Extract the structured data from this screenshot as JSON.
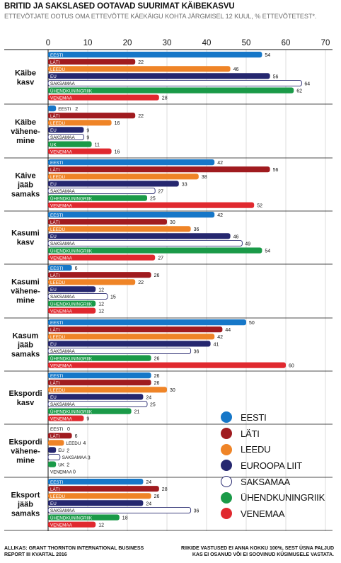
{
  "header": {
    "title": "BRITID JA SAKSLASED OOTAVAD SUURIMAT KÄIBEKASVU",
    "subtitle": "ETTEVÕTJATE OOTUS OMA ETTEVÕTTE KÄEKÄIGU KOHTA JÄRGMISEL 12 KUUL, % ETTEVÕTETEST*."
  },
  "footer": {
    "source": "ALLIKAS: GRANT THORNTON INTERNATIONAL BUSINESS REPORT III KVARTAL 2016",
    "note": "RIIKIDE VASTUSED EI ANNA KOKKU 100%, SEST ÜSNA PALJUD KAS EI OSANUD VÕI EI SOOVINUD KÜSIMUSELE VASTATA."
  },
  "colors": {
    "Eesti": "#1677c8",
    "Läti": "#a01b1f",
    "Leedu": "#ef8427",
    "EU": "#25276f",
    "Saksamaa": "#ffffff",
    "Ühendkuningriik": "#1a9a48",
    "Venemaa": "#e0292f"
  },
  "legend": [
    {
      "key": "Eesti",
      "label": "EESTI"
    },
    {
      "key": "Läti",
      "label": "LÄTI"
    },
    {
      "key": "Leedu",
      "label": "LEEDU"
    },
    {
      "key": "EU",
      "label": "EUROOPA LIIT"
    },
    {
      "key": "Saksamaa",
      "label": "SAKSAMAA"
    },
    {
      "key": "Ühendkuningriik",
      "label": "ÜHENDKUNINGRIIK"
    },
    {
      "key": "Venemaa",
      "label": "VENEMAA"
    }
  ],
  "chart_data": {
    "type": "bar",
    "orientation": "horizontal",
    "xlim": [
      0,
      70
    ],
    "xticks": [
      0,
      10,
      20,
      30,
      40,
      50,
      60,
      70
    ],
    "groups": [
      {
        "label": "Käibe kasv",
        "bars": [
          {
            "series": "Eesti",
            "bar_label": "EESTI",
            "value": 54
          },
          {
            "series": "Läti",
            "bar_label": "LÄTI",
            "value": 22
          },
          {
            "series": "Leedu",
            "bar_label": "LEEDU",
            "value": 46
          },
          {
            "series": "EU",
            "bar_label": "EU",
            "value": 56
          },
          {
            "series": "Saksamaa",
            "bar_label": "SAKSAMAA",
            "value": 64
          },
          {
            "series": "Ühendkuningriik",
            "bar_label": "ÜHENDKUNINGRIIK",
            "value": 62
          },
          {
            "series": "Venemaa",
            "bar_label": "VENEMAA",
            "value": 28
          }
        ]
      },
      {
        "label": "Käibe vähene-mine",
        "bars": [
          {
            "series": "Eesti",
            "bar_label": "EESTI",
            "value": 2
          },
          {
            "series": "Läti",
            "bar_label": "LÄTI",
            "value": 22
          },
          {
            "series": "Leedu",
            "bar_label": "LEEDU",
            "value": 16
          },
          {
            "series": "EU",
            "bar_label": "EU",
            "value": 9
          },
          {
            "series": "Saksamaa",
            "bar_label": "SAKSAMAA",
            "value": 9
          },
          {
            "series": "Ühendkuningriik",
            "bar_label": "UK",
            "value": 11
          },
          {
            "series": "Venemaa",
            "bar_label": "VENEMAA",
            "value": 16
          }
        ]
      },
      {
        "label": "Käive jääb samaks",
        "bars": [
          {
            "series": "Eesti",
            "bar_label": "EESTI",
            "value": 42
          },
          {
            "series": "Läti",
            "bar_label": "LÄTI",
            "value": 56
          },
          {
            "series": "Leedu",
            "bar_label": "LEEDU",
            "value": 38
          },
          {
            "series": "EU",
            "bar_label": "EU",
            "value": 33
          },
          {
            "series": "Saksamaa",
            "bar_label": "SAKSAMAA",
            "value": 27
          },
          {
            "series": "Ühendkuningriik",
            "bar_label": "ÜHENDKUNINGRIIK",
            "value": 25
          },
          {
            "series": "Venemaa",
            "bar_label": "VENEMAA",
            "value": 52
          }
        ]
      },
      {
        "label": "Kasumi kasv",
        "bars": [
          {
            "series": "Eesti",
            "bar_label": "EESTI",
            "value": 42
          },
          {
            "series": "Läti",
            "bar_label": "LÄTI",
            "value": 30
          },
          {
            "series": "Leedu",
            "bar_label": "LEEDU",
            "value": 36
          },
          {
            "series": "EU",
            "bar_label": "EU",
            "value": 46
          },
          {
            "series": "Saksamaa",
            "bar_label": "SAKSAMAA",
            "value": 49
          },
          {
            "series": "Ühendkuningriik",
            "bar_label": "ÜHENDKUNINGRIIK",
            "value": 54
          },
          {
            "series": "Venemaa",
            "bar_label": "VENEMAA",
            "value": 27
          }
        ]
      },
      {
        "label": "Kasumi vähene-mine",
        "bars": [
          {
            "series": "Eesti",
            "bar_label": "EESTI",
            "value": 6
          },
          {
            "series": "Läti",
            "bar_label": "LÄTI",
            "value": 26
          },
          {
            "series": "Leedu",
            "bar_label": "LEEDU",
            "value": 22
          },
          {
            "series": "EU",
            "bar_label": "EU",
            "value": 12
          },
          {
            "series": "Saksamaa",
            "bar_label": "SAKSAMAA",
            "value": 15
          },
          {
            "series": "Ühendkuningriik",
            "bar_label": "ÜHENDKUNINGRIIK",
            "value": 12
          },
          {
            "series": "Venemaa",
            "bar_label": "VENEMAA",
            "value": 12
          }
        ]
      },
      {
        "label": "Kasum jääb samaks",
        "bars": [
          {
            "series": "Eesti",
            "bar_label": "EESTI",
            "value": 50
          },
          {
            "series": "Läti",
            "bar_label": "LÄTI",
            "value": 44
          },
          {
            "series": "Leedu",
            "bar_label": "LEEDU",
            "value": 42
          },
          {
            "series": "EU",
            "bar_label": "EU",
            "value": 41
          },
          {
            "series": "Saksamaa",
            "bar_label": "SAKSAMAA",
            "value": 36
          },
          {
            "series": "Ühendkuningriik",
            "bar_label": "ÜHENDKUNINGRIIK",
            "value": 26
          },
          {
            "series": "Venemaa",
            "bar_label": "VENEMAA",
            "value": 60
          }
        ]
      },
      {
        "label": "Ekspordi kasv",
        "bars": [
          {
            "series": "Eesti",
            "bar_label": "EESTI",
            "value": 26
          },
          {
            "series": "Läti",
            "bar_label": "LÄTI",
            "value": 26
          },
          {
            "series": "Leedu",
            "bar_label": "LEEDU",
            "value": 30
          },
          {
            "series": "EU",
            "bar_label": "EU",
            "value": 24
          },
          {
            "series": "Saksamaa",
            "bar_label": "SAKSAMAA",
            "value": 25
          },
          {
            "series": "Ühendkuningriik",
            "bar_label": "ÜHENDKUNINGRIIK",
            "value": 21
          },
          {
            "series": "Venemaa",
            "bar_label": "VENEMAA",
            "value": 9
          }
        ]
      },
      {
        "label": "Ekspordi vähene-mine",
        "bars": [
          {
            "series": "Eesti",
            "bar_label": "EESTI",
            "value": 0
          },
          {
            "series": "Läti",
            "bar_label": "LÄTI",
            "value": 6
          },
          {
            "series": "Leedu",
            "bar_label": "LEEDU",
            "value": 4
          },
          {
            "series": "EU",
            "bar_label": "EU",
            "value": 2
          },
          {
            "series": "Saksamaa",
            "bar_label": "SAKSAMAA",
            "value": 3
          },
          {
            "series": "Ühendkuningriik",
            "bar_label": "UK",
            "value": 2
          },
          {
            "series": "Venemaa",
            "bar_label": "VENEMAA",
            "value": 0
          }
        ]
      },
      {
        "label": "Eksport jääb samaks",
        "bars": [
          {
            "series": "Eesti",
            "bar_label": "EESTI",
            "value": 24
          },
          {
            "series": "Läti",
            "bar_label": "LÄTI",
            "value": 28
          },
          {
            "series": "Leedu",
            "bar_label": "LEEDU",
            "value": 26
          },
          {
            "series": "EU",
            "bar_label": "EU",
            "value": 24
          },
          {
            "series": "Saksamaa",
            "bar_label": "SAKSAMAA",
            "value": 36
          },
          {
            "series": "Ühendkuningriik",
            "bar_label": "ÜHENDKUNINGRIIK",
            "value": 18
          },
          {
            "series": "Venemaa",
            "bar_label": "VENEMAA",
            "value": 12
          }
        ]
      }
    ]
  }
}
